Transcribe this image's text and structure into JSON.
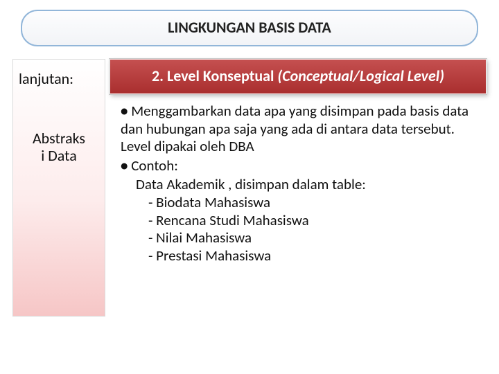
{
  "colors": {
    "title_border": "#92b6d9",
    "banner_bg_top": "#c55050",
    "banner_bg_bottom": "#a92e2e",
    "banner_text": "#ffffff",
    "sidebar_grad_top": "#ffffff",
    "sidebar_grad_mid": "#fdecec",
    "sidebar_grad_bottom": "#f6c6c6",
    "text": "#111111"
  },
  "title": "LINGKUNGAN BASIS DATA",
  "section": {
    "plain": "2. Level Konseptual ",
    "italic": "(Conceptual/Logical Level)"
  },
  "sidebar": {
    "top": "lanjutan:",
    "bottom_line1": "Abstraks",
    "bottom_line2": "i Data"
  },
  "bullets": {
    "b1": "Menggambarkan data apa yang disimpan pada basis data dan hubungan apa saja yang ada di antara data tersebut. Level dipakai oleh DBA",
    "b2": "Contoh:",
    "ex_intro": "Data Akademik , disimpan dalam table:",
    "items": {
      "i1": "- Biodata Mahasiswa",
      "i2": "- Rencana Studi Mahasiswa",
      "i3": "- Nilai Mahasiswa",
      "i4": "- Prestasi Mahasiswa"
    }
  }
}
